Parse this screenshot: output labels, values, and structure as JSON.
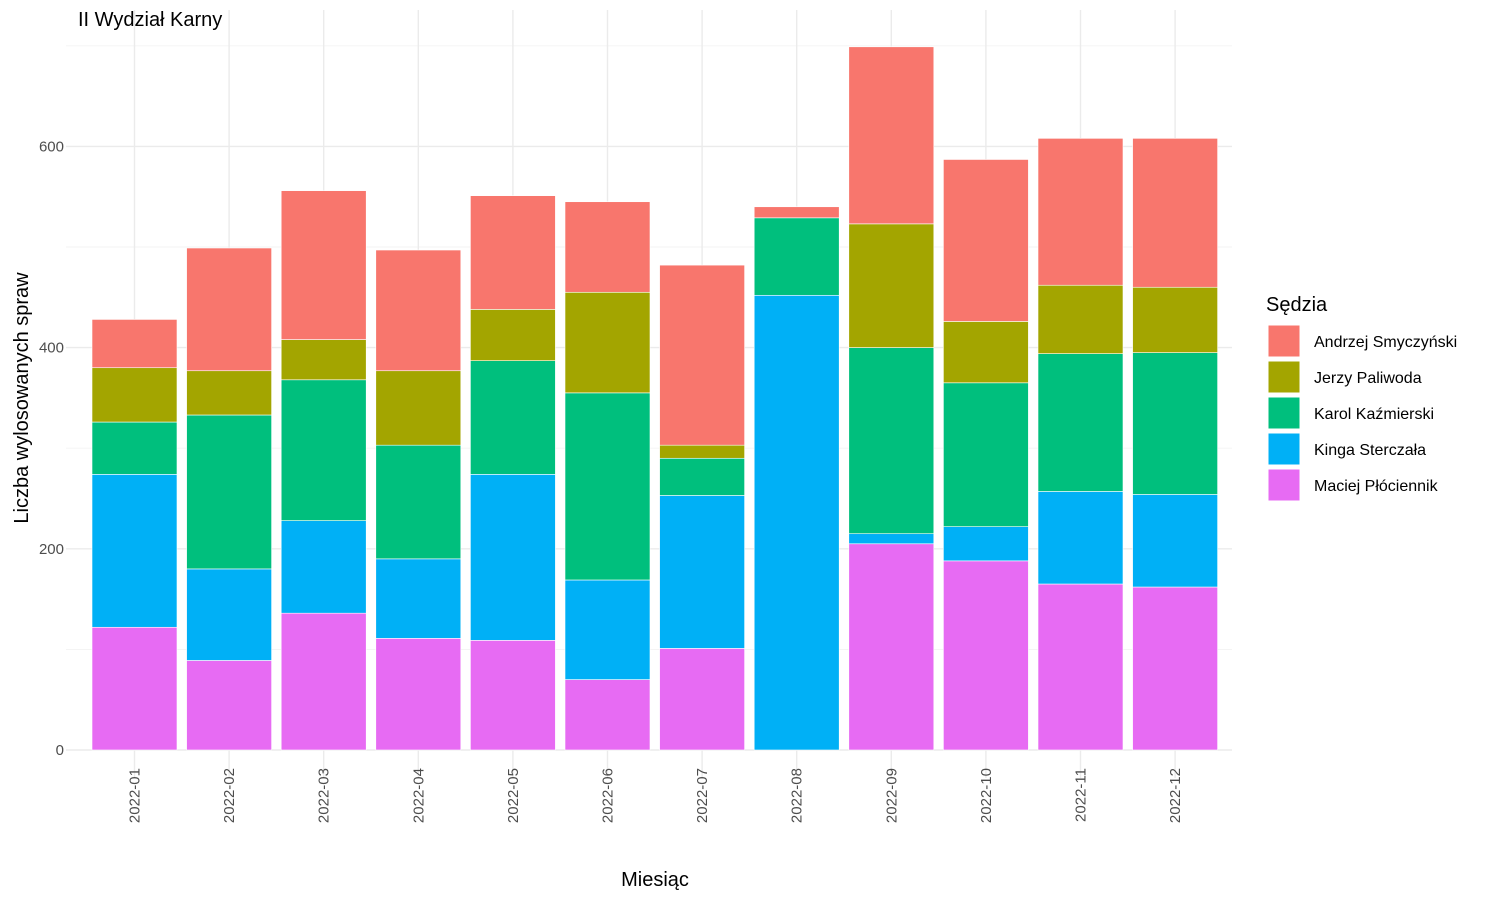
{
  "chart_data": {
    "type": "bar",
    "stacked": true,
    "title": "II Wydział Karny",
    "xlabel": "Miesiąc",
    "ylabel": "Liczba wylosowanych spraw",
    "ylim": [
      0,
      710
    ],
    "yticks": [
      0,
      200,
      400,
      600
    ],
    "grid": true,
    "legend_title": "Sędzia",
    "legend_position": "right",
    "categories": [
      "2022-01",
      "2022-02",
      "2022-03",
      "2022-04",
      "2022-05",
      "2022-06",
      "2022-07",
      "2022-08",
      "2022-09",
      "2022-10",
      "2022-11",
      "2022-12"
    ],
    "series": [
      {
        "name": "Andrzej Smyczyński",
        "color": "#F8766D",
        "values": [
          48,
          122,
          148,
          120,
          113,
          90,
          179,
          11,
          176,
          161,
          146,
          148
        ]
      },
      {
        "name": "Jerzy Paliwoda",
        "color": "#A3A500",
        "values": [
          54,
          44,
          40,
          74,
          51,
          100,
          13,
          0,
          123,
          61,
          68,
          65
        ]
      },
      {
        "name": "Karol Kaźmierski",
        "color": "#00BF7D",
        "values": [
          52,
          153,
          140,
          113,
          113,
          186,
          37,
          77,
          185,
          143,
          137,
          141
        ]
      },
      {
        "name": "Kinga Sterczała",
        "color": "#00B0F6",
        "values": [
          152,
          91,
          92,
          79,
          165,
          99,
          152,
          452,
          10,
          34,
          92,
          92
        ]
      },
      {
        "name": "Maciej Płóciennik",
        "color": "#E76BF3",
        "values": [
          122,
          89,
          136,
          111,
          109,
          70,
          101,
          0,
          205,
          188,
          165,
          162
        ]
      }
    ]
  }
}
